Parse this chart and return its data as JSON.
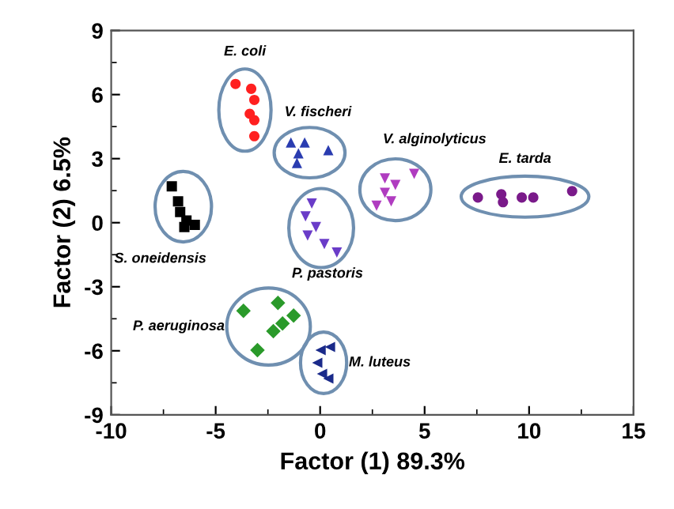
{
  "chart_data": {
    "type": "scatter",
    "xlabel": "Factor (1) 89.3%",
    "ylabel": "Factor (2) 6.5%",
    "xlim": [
      -10,
      15
    ],
    "ylim": [
      -9,
      9
    ],
    "xticks": [
      -10,
      -5,
      0,
      5,
      10,
      15
    ],
    "yticks": [
      -9,
      -6,
      -3,
      0,
      3,
      6,
      9
    ],
    "grid": false,
    "legend": false,
    "series": [
      {
        "name": "E. coli",
        "color": "#ff2020",
        "marker": "circle",
        "x": [
          -4.05,
          -3.3,
          -3.15,
          -3.37,
          -3.15,
          -3.15
        ],
        "values": [
          6.5,
          6.27,
          5.75,
          5.1,
          4.8,
          4.05
        ]
      },
      {
        "name": "V. fischeri",
        "color": "#2a3cb0",
        "marker": "triangle",
        "x": [
          -1.4,
          -0.74,
          -1.04,
          -1.11,
          0.39
        ],
        "values": [
          3.76,
          3.76,
          3.25,
          2.8,
          3.4
        ]
      },
      {
        "name": "S. oneidensis",
        "color": "#000000",
        "marker": "square",
        "x": [
          -7.1,
          -6.8,
          -6.7,
          -6.4,
          -6.0,
          -6.5
        ],
        "values": [
          1.7,
          1.0,
          0.5,
          0.1,
          -0.1,
          -0.2
        ]
      },
      {
        "name": "P. pastoris",
        "color": "#6a3cc8",
        "marker": "triangle_down",
        "x": [
          -0.4,
          -0.7,
          -0.2,
          -0.6,
          0.2,
          0.8
        ],
        "values": [
          0.9,
          0.3,
          -0.2,
          -0.6,
          -1.0,
          -1.4
        ]
      },
      {
        "name": "V. alginolyticus",
        "color": "#b03cc0",
        "marker": "triangle_down",
        "x": [
          3.1,
          3.6,
          4.5,
          3.1,
          2.7,
          3.4
        ],
        "values": [
          2.07,
          1.77,
          2.29,
          1.4,
          0.8,
          1.0
        ]
      },
      {
        "name": "E. tarda",
        "color": "#7a1a8a",
        "marker": "circle",
        "x": [
          7.55,
          8.67,
          8.75,
          9.65,
          10.2,
          12.06
        ],
        "values": [
          1.18,
          1.33,
          0.96,
          1.18,
          1.18,
          1.48
        ]
      },
      {
        "name": "P. aeruginosa",
        "color": "#2a9a2a",
        "marker": "diamond",
        "x": [
          -3.67,
          -2.02,
          -1.27,
          -1.8,
          -2.24,
          -3.0
        ],
        "values": [
          -4.13,
          -3.76,
          -4.35,
          -4.72,
          -5.08,
          -5.97
        ]
      },
      {
        "name": "M. luteus",
        "color": "#1a2a8a",
        "marker": "triangle_left",
        "x": [
          0.02,
          0.47,
          -0.14,
          0.09,
          0.39
        ],
        "values": [
          -5.97,
          -5.82,
          -6.56,
          -7.08,
          -7.3
        ]
      }
    ]
  }
}
